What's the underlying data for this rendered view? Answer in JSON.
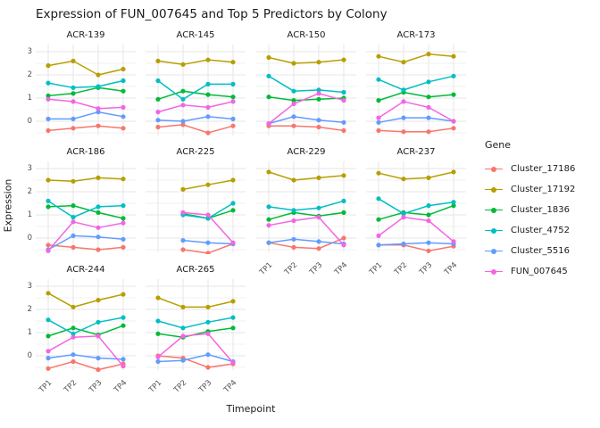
{
  "title": "Expression of FUN_007645 and Top 5 Predictors by Colony",
  "axes": {
    "x_label": "Timepoint",
    "y_label": "Expression",
    "x_ticks": [
      "TP1",
      "TP2",
      "TP3",
      "TP4"
    ],
    "y_ticks": [
      "3",
      "2",
      "1",
      "0"
    ]
  },
  "legend": {
    "title": "Gene",
    "items": [
      "Cluster_17186",
      "Cluster_17192",
      "Cluster_1836",
      "Cluster_4752",
      "Cluster_5516",
      "FUN_007645"
    ]
  },
  "chart_data": {
    "type": "line",
    "x": [
      "TP1",
      "TP2",
      "TP3",
      "TP4"
    ],
    "ylim": [
      -0.77,
      3.46
    ],
    "grid": "on",
    "legend_position": "right",
    "series": [
      {
        "name": "Cluster_17186",
        "color": "#F8766D"
      },
      {
        "name": "Cluster_17192",
        "color": "#B79F00"
      },
      {
        "name": "Cluster_1836",
        "color": "#00BA38"
      },
      {
        "name": "Cluster_4752",
        "color": "#00BFC4"
      },
      {
        "name": "Cluster_5516",
        "color": "#619CFF"
      },
      {
        "name": "FUN_007645",
        "color": "#F564E3"
      }
    ],
    "facets": [
      {
        "name": "ACR-139",
        "values": {
          "Cluster_17186": [
            -0.4,
            -0.3,
            -0.2,
            -0.3
          ],
          "Cluster_17192": [
            2.4,
            2.6,
            2.0,
            2.25
          ],
          "Cluster_1836": [
            1.1,
            1.2,
            1.45,
            1.3
          ],
          "Cluster_4752": [
            1.65,
            1.45,
            1.5,
            1.75
          ],
          "Cluster_5516": [
            0.1,
            0.1,
            0.4,
            0.2
          ],
          "FUN_007645": [
            0.95,
            0.85,
            0.55,
            0.6
          ]
        }
      },
      {
        "name": "ACR-145",
        "values": {
          "Cluster_17186": [
            -0.25,
            -0.15,
            -0.5,
            -0.2
          ],
          "Cluster_17192": [
            2.6,
            2.45,
            2.65,
            2.55
          ],
          "Cluster_1836": [
            0.95,
            1.3,
            1.15,
            1.05
          ],
          "Cluster_4752": [
            1.75,
            0.95,
            1.6,
            1.6
          ],
          "Cluster_5516": [
            0.05,
            0.0,
            0.2,
            0.1
          ],
          "FUN_007645": [
            0.4,
            0.7,
            0.6,
            0.85
          ]
        }
      },
      {
        "name": "ACR-150",
        "values": {
          "Cluster_17186": [
            -0.2,
            -0.2,
            -0.25,
            -0.4
          ],
          "Cluster_17192": [
            2.75,
            2.5,
            2.55,
            2.65
          ],
          "Cluster_1836": [
            1.05,
            0.9,
            0.95,
            1.0
          ],
          "Cluster_4752": [
            1.95,
            1.3,
            1.35,
            1.25
          ],
          "Cluster_5516": [
            -0.1,
            0.2,
            0.05,
            -0.05
          ],
          "FUN_007645": [
            -0.1,
            0.75,
            1.2,
            0.9
          ]
        }
      },
      {
        "name": "ACR-173",
        "values": {
          "Cluster_17186": [
            -0.4,
            -0.45,
            -0.45,
            -0.3
          ],
          "Cluster_17192": [
            2.8,
            2.55,
            2.9,
            2.8
          ],
          "Cluster_1836": [
            0.9,
            1.25,
            1.05,
            1.15
          ],
          "Cluster_4752": [
            1.8,
            1.35,
            1.7,
            1.95
          ],
          "Cluster_5516": [
            -0.05,
            0.15,
            0.15,
            0.0
          ],
          "FUN_007645": [
            0.15,
            0.85,
            0.6,
            0.0
          ]
        }
      },
      {
        "name": "ACR-186",
        "values": {
          "Cluster_17186": [
            -0.3,
            -0.4,
            -0.5,
            -0.4
          ],
          "Cluster_17192": [
            2.5,
            2.45,
            2.6,
            2.55
          ],
          "Cluster_1836": [
            1.35,
            1.4,
            1.1,
            0.85
          ],
          "Cluster_4752": [
            1.6,
            0.9,
            1.35,
            1.4
          ],
          "Cluster_5516": [
            -0.5,
            0.1,
            0.05,
            -0.05
          ],
          "FUN_007645": [
            -0.55,
            0.7,
            0.45,
            0.65
          ]
        }
      },
      {
        "name": "ACR-225",
        "values": {
          "Cluster_17186": [
            null,
            -0.5,
            -0.65,
            -0.25
          ],
          "Cluster_17192": [
            null,
            2.1,
            2.3,
            2.5
          ],
          "Cluster_1836": [
            null,
            1.05,
            0.85,
            1.2
          ],
          "Cluster_4752": [
            null,
            1.0,
            0.85,
            1.5
          ],
          "Cluster_5516": [
            null,
            -0.1,
            -0.2,
            -0.25
          ],
          "FUN_007645": [
            null,
            1.1,
            1.0,
            -0.2
          ]
        }
      },
      {
        "name": "ACR-229",
        "values": {
          "Cluster_17186": [
            -0.2,
            -0.4,
            -0.45,
            0.0
          ],
          "Cluster_17192": [
            2.85,
            2.5,
            2.6,
            2.7
          ],
          "Cluster_1836": [
            0.8,
            1.1,
            0.95,
            1.1
          ],
          "Cluster_4752": [
            1.35,
            1.2,
            1.3,
            1.6
          ],
          "Cluster_5516": [
            -0.2,
            -0.05,
            -0.15,
            -0.25
          ],
          "FUN_007645": [
            0.55,
            0.75,
            0.9,
            -0.3
          ]
        }
      },
      {
        "name": "ACR-237",
        "values": {
          "Cluster_17186": [
            -0.3,
            -0.3,
            -0.55,
            -0.35
          ],
          "Cluster_17192": [
            2.8,
            2.55,
            2.6,
            2.85
          ],
          "Cluster_1836": [
            0.8,
            1.1,
            1.0,
            1.4
          ],
          "Cluster_4752": [
            1.7,
            1.05,
            1.4,
            1.55
          ],
          "Cluster_5516": [
            -0.3,
            -0.25,
            -0.2,
            -0.25
          ],
          "FUN_007645": [
            0.1,
            0.9,
            0.75,
            -0.15
          ]
        }
      },
      {
        "name": "ACR-244",
        "values": {
          "Cluster_17186": [
            -0.55,
            -0.25,
            -0.6,
            -0.35
          ],
          "Cluster_17192": [
            2.7,
            2.1,
            2.4,
            2.65
          ],
          "Cluster_1836": [
            0.85,
            1.2,
            0.9,
            1.3
          ],
          "Cluster_4752": [
            1.55,
            0.95,
            1.45,
            1.65
          ],
          "Cluster_5516": [
            -0.1,
            0.05,
            -0.1,
            -0.15
          ],
          "FUN_007645": [
            0.2,
            0.8,
            0.85,
            -0.45
          ]
        }
      },
      {
        "name": "ACR-265",
        "values": {
          "Cluster_17186": [
            0.0,
            -0.1,
            -0.5,
            -0.35
          ],
          "Cluster_17192": [
            2.5,
            2.1,
            2.1,
            2.35
          ],
          "Cluster_1836": [
            0.95,
            0.8,
            1.05,
            1.2
          ],
          "Cluster_4752": [
            1.5,
            1.2,
            1.45,
            1.65
          ],
          "Cluster_5516": [
            -0.25,
            -0.2,
            0.05,
            -0.25
          ],
          "FUN_007645": [
            -0.05,
            0.85,
            0.95,
            -0.3
          ]
        }
      }
    ]
  },
  "colors": {
    "grid_major": "#e6e6e6",
    "grid_minor": "#f2f2f2",
    "tick_text": "#4d4d4d"
  }
}
